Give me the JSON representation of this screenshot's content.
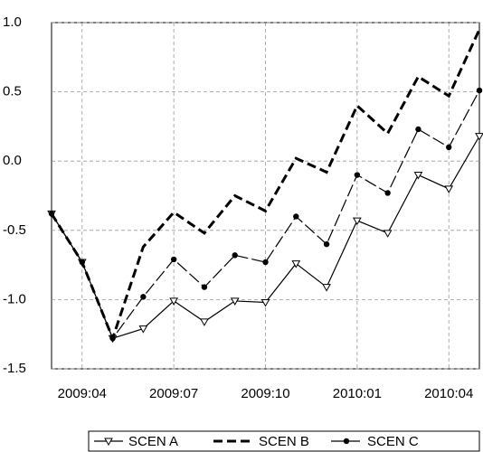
{
  "chart_data": {
    "type": "line",
    "categories": [
      null,
      "2009:04",
      null,
      null,
      "2009:07",
      null,
      null,
      "2009:10",
      null,
      null,
      "2010:01",
      null,
      null,
      "2010:04",
      null
    ],
    "series": [
      {
        "name": "SCEN A",
        "color": "#000000",
        "dash": "solid",
        "marker": "triangle-open",
        "values": [
          -0.38,
          -0.73,
          -1.28,
          -1.21,
          -1.01,
          -1.16,
          -1.01,
          -1.02,
          -0.74,
          -0.91,
          -0.43,
          -0.52,
          -0.1,
          -0.2,
          0.18
        ]
      },
      {
        "name": "SCEN B",
        "color": "#000000",
        "dash": "thick-dashed",
        "marker": "none",
        "values": [
          -0.38,
          -0.73,
          -1.28,
          -0.62,
          -0.37,
          -0.52,
          -0.25,
          -0.36,
          0.02,
          -0.08,
          0.4,
          0.2,
          0.61,
          0.47,
          0.95
        ]
      },
      {
        "name": "SCEN C",
        "color": "#000000",
        "dash": "long-dash",
        "marker": "dot",
        "values": [
          -0.38,
          -0.73,
          -1.28,
          -0.98,
          -0.71,
          -0.91,
          -0.68,
          -0.73,
          -0.4,
          -0.6,
          -0.1,
          -0.23,
          0.23,
          0.1,
          0.51
        ]
      }
    ],
    "ylim": [
      -1.5,
      1.0
    ],
    "yticks": [
      -1.5,
      {
        "value": -1.0,
        "label": "-1.0"
      },
      -0.5,
      {
        "value": 0,
        "label": "0.0"
      },
      0.5,
      {
        "value": 1.0,
        "label": "1.0"
      }
    ],
    "grid": true,
    "legend": "bottom"
  }
}
